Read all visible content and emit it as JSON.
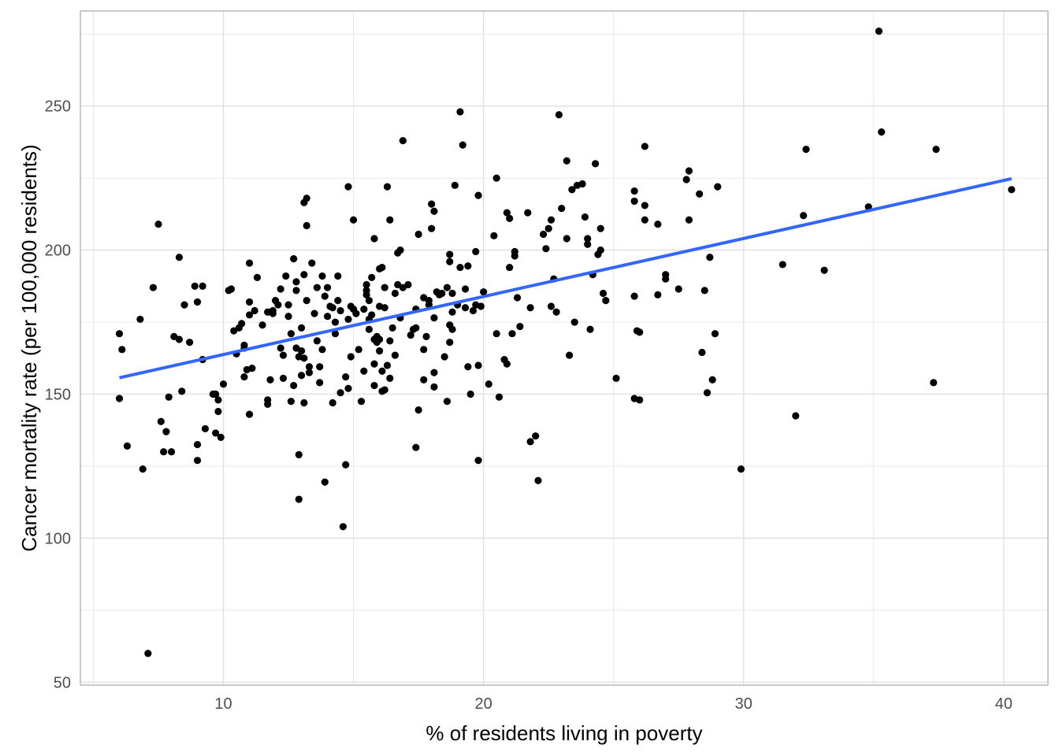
{
  "chart_data": {
    "type": "scatter",
    "title": "",
    "xlabel": "% of residents living in poverty",
    "ylabel": "Cancer mortality rate (per 100,000 residents)",
    "xlim": [
      4.5,
      41.7
    ],
    "ylim": [
      49,
      283
    ],
    "x_ticks": [
      10,
      20,
      30,
      40
    ],
    "y_ticks": [
      50,
      100,
      150,
      200,
      250
    ],
    "grid": true,
    "colors": {
      "points": "#000000",
      "trend": "#3366FF",
      "grid": "#dedede",
      "border": "#b3b3b3"
    },
    "trend_line": {
      "x": [
        6.0,
        40.3
      ],
      "y": [
        155.7,
        224.8
      ]
    },
    "points": [
      [
        6.0,
        171.0
      ],
      [
        6.1,
        165.5
      ],
      [
        6.0,
        148.5
      ],
      [
        6.3,
        132.0
      ],
      [
        6.8,
        176.0
      ],
      [
        6.9,
        124.0
      ],
      [
        7.1,
        60.0
      ],
      [
        7.3,
        187.0
      ],
      [
        7.5,
        209.0
      ],
      [
        7.6,
        140.5
      ],
      [
        7.7,
        130.0
      ],
      [
        7.8,
        137.0
      ],
      [
        7.9,
        149.0
      ],
      [
        8.0,
        130.0
      ],
      [
        8.1,
        170.0
      ],
      [
        8.3,
        169.0
      ],
      [
        8.3,
        197.5
      ],
      [
        8.4,
        151.0
      ],
      [
        8.5,
        181.0
      ],
      [
        8.7,
        168.0
      ],
      [
        8.9,
        187.5
      ],
      [
        9.0,
        182.0
      ],
      [
        9.0,
        132.5
      ],
      [
        9.0,
        127.0
      ],
      [
        9.2,
        187.5
      ],
      [
        9.2,
        162.0
      ],
      [
        9.3,
        138.0
      ],
      [
        9.6,
        150.0
      ],
      [
        9.7,
        136.5
      ],
      [
        9.8,
        148.0
      ],
      [
        9.8,
        144.0
      ],
      [
        9.9,
        135.0
      ],
      [
        9.7,
        150.0
      ],
      [
        10.0,
        153.5
      ],
      [
        10.2,
        186.0
      ],
      [
        10.3,
        186.5
      ],
      [
        10.4,
        172.0
      ],
      [
        10.5,
        164.0
      ],
      [
        10.6,
        173.0
      ],
      [
        10.7,
        174.5
      ],
      [
        10.8,
        166.0
      ],
      [
        10.8,
        167.0
      ],
      [
        10.8,
        156.0
      ],
      [
        10.9,
        158.5
      ],
      [
        11.0,
        177.5
      ],
      [
        11.0,
        182.0
      ],
      [
        11.0,
        195.5
      ],
      [
        11.0,
        143.0
      ],
      [
        11.1,
        159.0
      ],
      [
        11.2,
        179.0
      ],
      [
        11.3,
        190.5
      ],
      [
        11.5,
        174.0
      ],
      [
        11.7,
        178.5
      ],
      [
        11.7,
        146.5
      ],
      [
        11.7,
        148.0
      ],
      [
        11.8,
        155.0
      ],
      [
        11.9,
        179.0
      ],
      [
        11.9,
        178.0
      ],
      [
        12.0,
        182.5
      ],
      [
        12.1,
        181.0
      ],
      [
        12.2,
        166.0
      ],
      [
        12.2,
        186.5
      ],
      [
        12.3,
        163.5
      ],
      [
        12.3,
        155.5
      ],
      [
        12.4,
        191.0
      ],
      [
        12.5,
        181.0
      ],
      [
        12.5,
        177.0
      ],
      [
        12.6,
        171.0
      ],
      [
        12.6,
        147.5
      ],
      [
        12.7,
        197.0
      ],
      [
        12.7,
        153.0
      ],
      [
        12.8,
        189.0
      ],
      [
        12.8,
        186.0
      ],
      [
        12.8,
        166.0
      ],
      [
        12.9,
        163.0
      ],
      [
        12.9,
        129.0
      ],
      [
        12.9,
        113.5
      ],
      [
        13.0,
        173.0
      ],
      [
        13.0,
        165.0
      ],
      [
        13.0,
        156.5
      ],
      [
        13.1,
        216.5
      ],
      [
        13.1,
        191.5
      ],
      [
        13.1,
        162.5
      ],
      [
        13.1,
        147.0
      ],
      [
        13.2,
        218.0
      ],
      [
        13.2,
        208.5
      ],
      [
        13.2,
        182.5
      ],
      [
        13.3,
        159.5
      ],
      [
        13.3,
        157.5
      ],
      [
        13.4,
        195.5
      ],
      [
        13.5,
        178.0
      ],
      [
        13.6,
        187.0
      ],
      [
        13.6,
        168.5
      ],
      [
        13.7,
        154.0
      ],
      [
        13.7,
        159.5
      ],
      [
        13.8,
        191.0
      ],
      [
        13.8,
        165.5
      ],
      [
        13.9,
        119.5
      ],
      [
        13.9,
        184.0
      ],
      [
        14.0,
        177.0
      ],
      [
        14.0,
        187.0
      ],
      [
        14.1,
        180.5
      ],
      [
        14.2,
        147.0
      ],
      [
        14.2,
        180.0
      ],
      [
        14.3,
        175.0
      ],
      [
        14.3,
        171.0
      ],
      [
        14.4,
        182.5
      ],
      [
        14.4,
        191.0
      ],
      [
        14.5,
        179.0
      ],
      [
        14.5,
        150.5
      ],
      [
        14.6,
        104.0
      ],
      [
        14.7,
        125.5
      ],
      [
        14.7,
        156.0
      ],
      [
        14.8,
        152.0
      ],
      [
        14.8,
        222.0
      ],
      [
        14.8,
        176.0
      ],
      [
        14.9,
        163.0
      ],
      [
        14.9,
        180.5
      ],
      [
        15.0,
        179.5
      ],
      [
        15.0,
        210.5
      ],
      [
        15.1,
        178.0
      ],
      [
        15.2,
        165.5
      ],
      [
        15.3,
        147.5
      ],
      [
        15.4,
        158.0
      ],
      [
        15.4,
        179.5
      ],
      [
        15.5,
        186.0
      ],
      [
        15.5,
        188.0
      ],
      [
        15.5,
        184.5
      ],
      [
        15.6,
        176.0
      ],
      [
        15.6,
        172.5
      ],
      [
        15.6,
        182.5
      ],
      [
        15.7,
        190.5
      ],
      [
        15.7,
        177.5
      ],
      [
        15.8,
        169.0
      ],
      [
        15.8,
        160.5
      ],
      [
        15.8,
        153.0
      ],
      [
        15.8,
        204.0
      ],
      [
        15.9,
        170.0
      ],
      [
        15.9,
        168.0
      ],
      [
        16.0,
        193.5
      ],
      [
        16.0,
        180.5
      ],
      [
        16.0,
        169.0
      ],
      [
        16.0,
        165.0
      ],
      [
        16.1,
        194.0
      ],
      [
        16.1,
        158.0
      ],
      [
        16.1,
        151.0
      ],
      [
        16.2,
        151.5
      ],
      [
        16.2,
        187.0
      ],
      [
        16.2,
        180.0
      ],
      [
        16.3,
        160.0
      ],
      [
        16.3,
        222.0
      ],
      [
        16.4,
        210.5
      ],
      [
        16.4,
        168.5
      ],
      [
        16.4,
        155.5
      ],
      [
        16.5,
        173.0
      ],
      [
        16.6,
        185.0
      ],
      [
        16.6,
        163.5
      ],
      [
        16.7,
        188.0
      ],
      [
        16.7,
        199.0
      ],
      [
        16.8,
        200.0
      ],
      [
        16.8,
        176.5
      ],
      [
        16.9,
        187.0
      ],
      [
        16.9,
        238.0
      ],
      [
        17.1,
        188.0
      ],
      [
        17.2,
        170.5
      ],
      [
        17.3,
        172.5
      ],
      [
        17.4,
        179.5
      ],
      [
        17.4,
        173.0
      ],
      [
        17.4,
        131.5
      ],
      [
        17.5,
        205.5
      ],
      [
        17.5,
        144.5
      ],
      [
        17.7,
        183.5
      ],
      [
        17.7,
        165.5
      ],
      [
        17.7,
        155.0
      ],
      [
        17.8,
        170.0
      ],
      [
        17.9,
        182.5
      ],
      [
        17.9,
        181.0
      ],
      [
        18.0,
        207.5
      ],
      [
        18.0,
        216.0
      ],
      [
        18.1,
        213.5
      ],
      [
        18.1,
        176.5
      ],
      [
        18.1,
        157.5
      ],
      [
        18.1,
        152.5
      ],
      [
        18.2,
        185.5
      ],
      [
        18.3,
        184.5
      ],
      [
        18.4,
        185.0
      ],
      [
        18.5,
        163.0
      ],
      [
        18.6,
        147.5
      ],
      [
        18.6,
        187.0
      ],
      [
        18.7,
        168.0
      ],
      [
        18.7,
        174.0
      ],
      [
        18.7,
        198.5
      ],
      [
        18.7,
        196.0
      ],
      [
        18.8,
        172.5
      ],
      [
        18.8,
        185.0
      ],
      [
        18.8,
        178.5
      ],
      [
        18.9,
        222.5
      ],
      [
        19.0,
        181.0
      ],
      [
        19.1,
        194.0
      ],
      [
        19.1,
        248.0
      ],
      [
        19.2,
        236.5
      ],
      [
        19.3,
        186.5
      ],
      [
        19.3,
        180.0
      ],
      [
        19.4,
        159.5
      ],
      [
        19.4,
        194.5
      ],
      [
        19.5,
        150.0
      ],
      [
        19.6,
        179.0
      ],
      [
        19.7,
        199.5
      ],
      [
        19.7,
        181.0
      ],
      [
        19.8,
        219.0
      ],
      [
        19.8,
        160.0
      ],
      [
        19.8,
        127.0
      ],
      [
        19.9,
        180.5
      ],
      [
        20.0,
        185.5
      ],
      [
        20.2,
        153.5
      ],
      [
        20.4,
        205.0
      ],
      [
        20.5,
        225.0
      ],
      [
        20.5,
        171.0
      ],
      [
        20.6,
        149.0
      ],
      [
        20.8,
        162.0
      ],
      [
        20.9,
        160.5
      ],
      [
        20.9,
        213.0
      ],
      [
        21.0,
        194.0
      ],
      [
        21.0,
        211.0
      ],
      [
        21.1,
        171.0
      ],
      [
        21.2,
        199.5
      ],
      [
        21.2,
        198.0
      ],
      [
        21.3,
        183.5
      ],
      [
        21.4,
        173.5
      ],
      [
        21.7,
        213.0
      ],
      [
        21.8,
        133.5
      ],
      [
        21.8,
        180.0
      ],
      [
        22.0,
        135.5
      ],
      [
        22.1,
        120.0
      ],
      [
        22.3,
        205.5
      ],
      [
        22.4,
        200.5
      ],
      [
        22.5,
        207.5
      ],
      [
        22.6,
        210.5
      ],
      [
        22.6,
        180.5
      ],
      [
        22.7,
        190.0
      ],
      [
        22.8,
        178.5
      ],
      [
        22.9,
        247.0
      ],
      [
        23.0,
        214.5
      ],
      [
        23.2,
        231.0
      ],
      [
        23.2,
        204.0
      ],
      [
        23.3,
        163.5
      ],
      [
        23.4,
        221.0
      ],
      [
        23.5,
        175.0
      ],
      [
        23.6,
        222.5
      ],
      [
        23.8,
        223.0
      ],
      [
        23.9,
        211.5
      ],
      [
        24.0,
        202.0
      ],
      [
        24.0,
        204.0
      ],
      [
        24.1,
        172.5
      ],
      [
        24.2,
        191.5
      ],
      [
        24.3,
        230.0
      ],
      [
        24.4,
        198.5
      ],
      [
        24.5,
        207.5
      ],
      [
        24.5,
        200.0
      ],
      [
        24.6,
        185.0
      ],
      [
        24.7,
        182.5
      ],
      [
        25.1,
        155.5
      ],
      [
        25.8,
        220.5
      ],
      [
        25.8,
        217.0
      ],
      [
        25.8,
        184.0
      ],
      [
        25.8,
        148.5
      ],
      [
        25.9,
        172.0
      ],
      [
        26.0,
        171.5
      ],
      [
        26.0,
        148.0
      ],
      [
        26.2,
        215.5
      ],
      [
        26.2,
        210.5
      ],
      [
        26.2,
        236.0
      ],
      [
        26.7,
        209.0
      ],
      [
        26.7,
        184.5
      ],
      [
        27.0,
        191.5
      ],
      [
        27.0,
        190.0
      ],
      [
        27.5,
        186.5
      ],
      [
        27.8,
        224.5
      ],
      [
        27.9,
        210.5
      ],
      [
        27.9,
        227.5
      ],
      [
        28.3,
        219.5
      ],
      [
        28.4,
        164.5
      ],
      [
        28.5,
        186.0
      ],
      [
        28.6,
        150.5
      ],
      [
        28.7,
        197.5
      ],
      [
        28.8,
        155.0
      ],
      [
        28.9,
        171.0
      ],
      [
        29.0,
        222.0
      ],
      [
        29.9,
        124.0
      ],
      [
        31.5,
        195.0
      ],
      [
        32.0,
        142.5
      ],
      [
        32.3,
        212.0
      ],
      [
        32.4,
        235.0
      ],
      [
        33.1,
        193.0
      ],
      [
        34.8,
        215.0
      ],
      [
        35.2,
        276.0
      ],
      [
        35.3,
        241.0
      ],
      [
        37.3,
        154.0
      ],
      [
        37.4,
        235.0
      ],
      [
        40.3,
        221.0
      ]
    ]
  }
}
